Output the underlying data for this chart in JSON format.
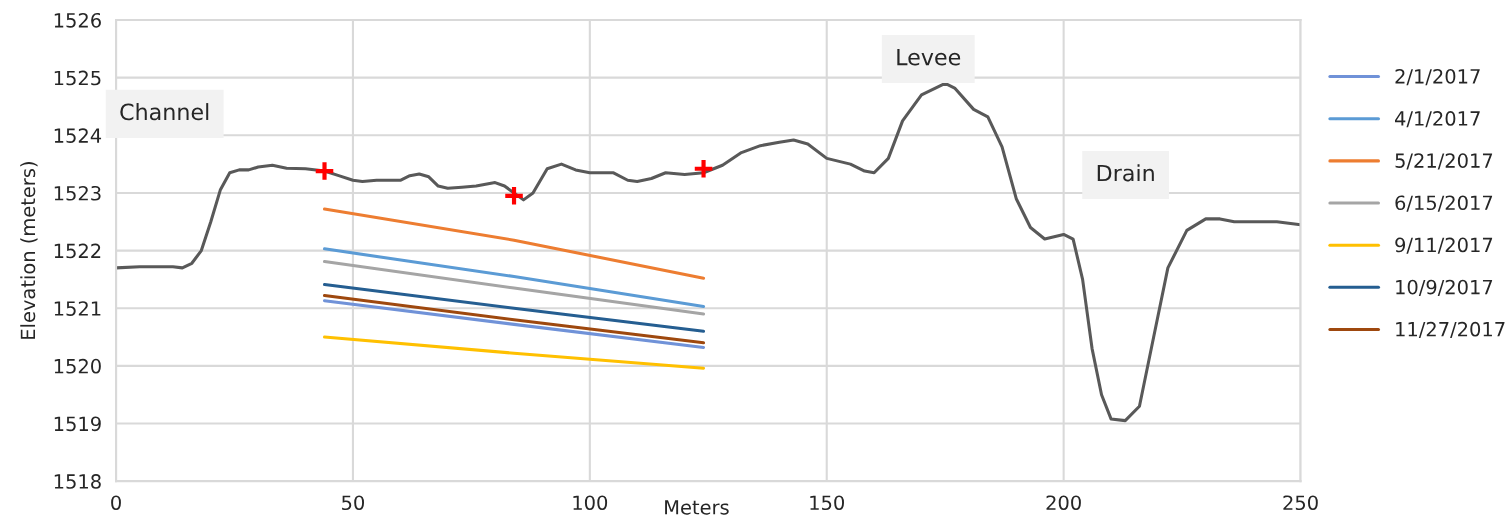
{
  "chart_data": {
    "type": "line",
    "ylabel": "Elevation (meters)",
    "xlabel": "Meters",
    "xlim": [
      0,
      250
    ],
    "xticks": [
      0,
      50,
      100,
      150,
      200,
      250
    ],
    "ylim": [
      1518,
      1526
    ],
    "yticks": [
      1518,
      1519,
      1520,
      1521,
      1522,
      1523,
      1524,
      1525,
      1526
    ],
    "grid": true,
    "legend": "right",
    "line_style": "solid",
    "annotations": [
      "Channel",
      "Levee",
      "Drain"
    ],
    "series": [
      {
        "color": "#595959",
        "marker": "none",
        "x": [
          0,
          5,
          12,
          14,
          16,
          18,
          20,
          22,
          24,
          26,
          28,
          30,
          33,
          36,
          40,
          44,
          47,
          50,
          52,
          55,
          60,
          62,
          64,
          66,
          68,
          70,
          73,
          76,
          80,
          82,
          86,
          88,
          91,
          94,
          97,
          100,
          105,
          108,
          110,
          113,
          116,
          120,
          124,
          128,
          132,
          136,
          140,
          143,
          146,
          150,
          155,
          158,
          160,
          163,
          166,
          170,
          175,
          177,
          181,
          184,
          187,
          190,
          193,
          196,
          200,
          202,
          204,
          206,
          208,
          210,
          213,
          216,
          219,
          222,
          226,
          230,
          233,
          236,
          245,
          250
        ],
        "values": [
          1521.7,
          1521.72,
          1521.72,
          1521.7,
          1521.78,
          1522.0,
          1522.5,
          1523.05,
          1523.35,
          1523.4,
          1523.4,
          1523.45,
          1523.48,
          1523.43,
          1523.42,
          1523.38,
          1523.3,
          1523.22,
          1523.2,
          1523.22,
          1523.22,
          1523.3,
          1523.33,
          1523.28,
          1523.12,
          1523.08,
          1523.1,
          1523.12,
          1523.18,
          1523.12,
          1522.88,
          1523.0,
          1523.42,
          1523.5,
          1523.4,
          1523.35,
          1523.35,
          1523.22,
          1523.2,
          1523.25,
          1523.35,
          1523.32,
          1523.35,
          1523.48,
          1523.7,
          1523.82,
          1523.88,
          1523.92,
          1523.85,
          1523.6,
          1523.5,
          1523.38,
          1523.35,
          1523.6,
          1524.25,
          1524.7,
          1524.9,
          1524.82,
          1524.45,
          1524.32,
          1523.8,
          1522.9,
          1522.4,
          1522.2,
          1522.28,
          1522.2,
          1521.5,
          1520.3,
          1519.5,
          1519.08,
          1519.05,
          1519.3,
          1520.5,
          1521.7,
          1522.35,
          1522.55,
          1522.55,
          1522.5,
          1522.5,
          1522.45
        ]
      },
      {
        "type": "scatter",
        "color": "#ff0000",
        "marker": "cross",
        "x": [
          44,
          84,
          124
        ],
        "values": [
          1523.38,
          1522.95,
          1523.42
        ]
      },
      {
        "name": "2/1/2017",
        "color": "#7092d8",
        "x": [
          44,
          84,
          124
        ],
        "values": [
          1521.13,
          1520.72,
          1520.32
        ]
      },
      {
        "name": "4/1/2017",
        "color": "#5b9bd5",
        "x": [
          44,
          84,
          124
        ],
        "values": [
          1522.03,
          1521.55,
          1521.03
        ]
      },
      {
        "name": "5/21/2017",
        "color": "#ed7d31",
        "x": [
          44,
          84,
          124
        ],
        "values": [
          1522.72,
          1522.18,
          1521.52
        ]
      },
      {
        "name": "6/15/2017",
        "color": "#a5a5a5",
        "x": [
          44,
          84,
          124
        ],
        "values": [
          1521.81,
          1521.35,
          1520.9
        ]
      },
      {
        "name": "9/11/2017",
        "color": "#ffc000",
        "x": [
          44,
          84,
          124
        ],
        "values": [
          1520.5,
          1520.22,
          1519.96
        ]
      },
      {
        "name": "10/9/2017",
        "color": "#255e91",
        "x": [
          44,
          84,
          124
        ],
        "values": [
          1521.41,
          1521.0,
          1520.6
        ]
      },
      {
        "name": "11/27/2017",
        "color": "#9e480e",
        "x": [
          44,
          84,
          124
        ],
        "values": [
          1521.22,
          1520.8,
          1520.4
        ]
      }
    ]
  }
}
